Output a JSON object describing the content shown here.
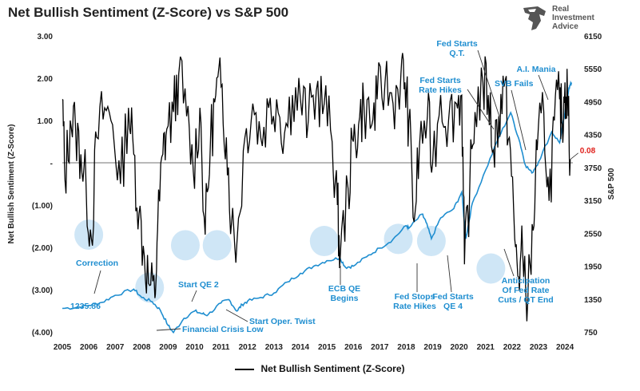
{
  "chart_data": {
    "type": "line",
    "title": "Net Bullish Sentiment (Z-Score) vs S&P 500",
    "y_left_label": "Net Bullish Sentiment (Z-Score)",
    "y_right_label": "S&P 500",
    "y_left_range": [
      -4.0,
      3.0
    ],
    "y_right_range": [
      750,
      6150
    ],
    "y_left_ticks": [
      "3.00",
      "2.00",
      "1.00",
      "-",
      "(1.00)",
      "(2.00)",
      "(3.00)",
      "(4.00)"
    ],
    "y_right_ticks": [
      "6150",
      "5550",
      "4950",
      "4350",
      "3750",
      "3150",
      "2550",
      "1950",
      "1350",
      "750"
    ],
    "x_ticks": [
      "2005",
      "2006",
      "2007",
      "2008",
      "2009",
      "2010",
      "2011",
      "2012",
      "2013",
      "2014",
      "2015",
      "2016",
      "2017",
      "2018",
      "2019",
      "2020",
      "2021",
      "2022",
      "2023",
      "2024"
    ],
    "x_range": [
      2005,
      2024.3
    ],
    "grid": false,
    "legend_position": "bottom",
    "colors": {
      "sentiment": "#000000",
      "sp500": "#1f8ed0",
      "last_value": "#e0201b",
      "highlight": "#cfe6f6"
    },
    "last_value_label": "0.08",
    "series": [
      {
        "name": "Net Bullish Sentiment (Z-Score)",
        "axis": "left",
        "x": [
          2005.0,
          2005.1,
          2005.3,
          2005.5,
          2005.7,
          2005.9,
          2006.1,
          2006.3,
          2006.6,
          2006.9,
          2007.2,
          2007.5,
          2007.7,
          2007.9,
          2008.1,
          2008.3,
          2008.5,
          2008.6,
          2008.8,
          2008.95,
          2009.2,
          2009.4,
          2009.7,
          2009.95,
          2010.2,
          2010.4,
          2010.6,
          2010.8,
          2011.0,
          2011.2,
          2011.4,
          2011.6,
          2011.9,
          2012.2,
          2012.5,
          2012.8,
          2013.1,
          2013.4,
          2013.7,
          2014.0,
          2014.3,
          2014.6,
          2014.9,
          2015.2,
          2015.4,
          2015.5,
          2015.8,
          2016.0,
          2016.2,
          2016.4,
          2016.7,
          2016.9,
          2017.2,
          2017.5,
          2017.8,
          2017.95,
          2018.1,
          2018.3,
          2018.5,
          2018.8,
          2019.0,
          2019.3,
          2019.6,
          2019.9,
          2020.1,
          2020.2,
          2020.4,
          2020.6,
          2020.9,
          2021.1,
          2021.3,
          2021.5,
          2021.7,
          2021.9,
          2022.1,
          2022.25,
          2022.4,
          2022.6,
          2022.8,
          2022.95,
          2023.2,
          2023.4,
          2023.6,
          2023.8,
          2023.9,
          2024.0,
          2024.1,
          2024.2
        ],
        "values": [
          1.5,
          -0.4,
          1.0,
          0.8,
          0.2,
          -0.6,
          -1.8,
          0.6,
          1.3,
          0.9,
          -0.5,
          1.3,
          0.2,
          -1.2,
          -2.2,
          -2.9,
          -3.2,
          -1.6,
          0.2,
          0.8,
          1.2,
          2.1,
          1.1,
          -0.2,
          1.3,
          -1.7,
          0.5,
          1.6,
          1.8,
          0.6,
          -1.4,
          -1.9,
          0.6,
          1.4,
          0.6,
          1.3,
          1.5,
          0.7,
          1.6,
          1.5,
          1.0,
          1.7,
          1.4,
          0.5,
          -1.0,
          -2.3,
          -0.6,
          0.5,
          0.9,
          1.4,
          0.9,
          1.5,
          1.9,
          1.4,
          2.1,
          1.9,
          1.0,
          -1.4,
          0.4,
          1.1,
          0.0,
          1.6,
          1.0,
          1.4,
          1.6,
          -2.4,
          -0.6,
          1.2,
          1.9,
          1.6,
          0.3,
          1.1,
          1.8,
          0.6,
          -1.8,
          -2.7,
          -2.1,
          -3.2,
          -1.6,
          0.3,
          1.2,
          -0.9,
          1.0,
          1.5,
          0.9,
          1.9,
          1.5,
          0.08
        ]
      },
      {
        "name": "S&P 500",
        "axis": "right",
        "x": [
          2005.0,
          2005.6,
          2006.0,
          2006.5,
          2007.0,
          2007.7,
          2008.0,
          2008.4,
          2008.7,
          2009.0,
          2009.2,
          2009.6,
          2010.0,
          2010.3,
          2010.5,
          2011.0,
          2011.3,
          2011.6,
          2011.8,
          2012.0,
          2012.5,
          2013.0,
          2013.5,
          2014.0,
          2014.5,
          2015.0,
          2015.5,
          2015.7,
          2016.0,
          2016.5,
          2017.0,
          2017.5,
          2018.0,
          2018.1,
          2018.6,
          2018.75,
          2018.95,
          2019.3,
          2019.8,
          2020.1,
          2020.25,
          2020.5,
          2021.0,
          2021.5,
          2021.95,
          2022.3,
          2022.5,
          2022.75,
          2023.0,
          2023.5,
          2023.8,
          2024.0,
          2024.15,
          2024.25
        ],
        "values": [
          1180,
          1200,
          1235,
          1290,
          1420,
          1530,
          1380,
          1300,
          1150,
          870,
          740,
          1000,
          1130,
          1080,
          1060,
          1280,
          1340,
          1130,
          1250,
          1310,
          1380,
          1460,
          1660,
          1820,
          1950,
          2050,
          2100,
          1930,
          1950,
          2120,
          2280,
          2440,
          2690,
          2640,
          2900,
          2750,
          2450,
          2830,
          3000,
          3300,
          2450,
          3100,
          3700,
          4300,
          4750,
          4200,
          3800,
          3650,
          3850,
          4400,
          4200,
          4750,
          5200,
          5300
        ]
      }
    ]
  },
  "annotations": {
    "correction": "Correction",
    "start_level": "1235.86",
    "financial_crisis_low": "Financial Crisis Low",
    "start_qe2": "Start QE 2",
    "start_oper_twist": "Start Oper. Twist",
    "ecb_qe_line1": "ECB QE",
    "ecb_qe_line2": "Begins",
    "fed_stops_line1": "Fed Stops",
    "fed_stops_line2": "Rate Hikes",
    "fed_qe4_line1": "Fed Starts",
    "fed_qe4_line2": "QE 4",
    "anticipation_line1": "Anticipation",
    "anticipation_line2": "Of Fed Rate",
    "anticipation_line3": "Cuts / QT End",
    "fed_hikes_line1": "Fed Starts",
    "fed_hikes_line2": "Rate Hikes",
    "fed_qt_line1": "Fed Starts",
    "fed_qt_line2": "Q.T.",
    "svb_fails": "SVB Fails",
    "ai_mania": "A.I. Mania"
  },
  "brand": {
    "line1": "Real",
    "line2": "Investment",
    "line3": "Advice",
    "logo_icon": "eagle-head-icon"
  }
}
